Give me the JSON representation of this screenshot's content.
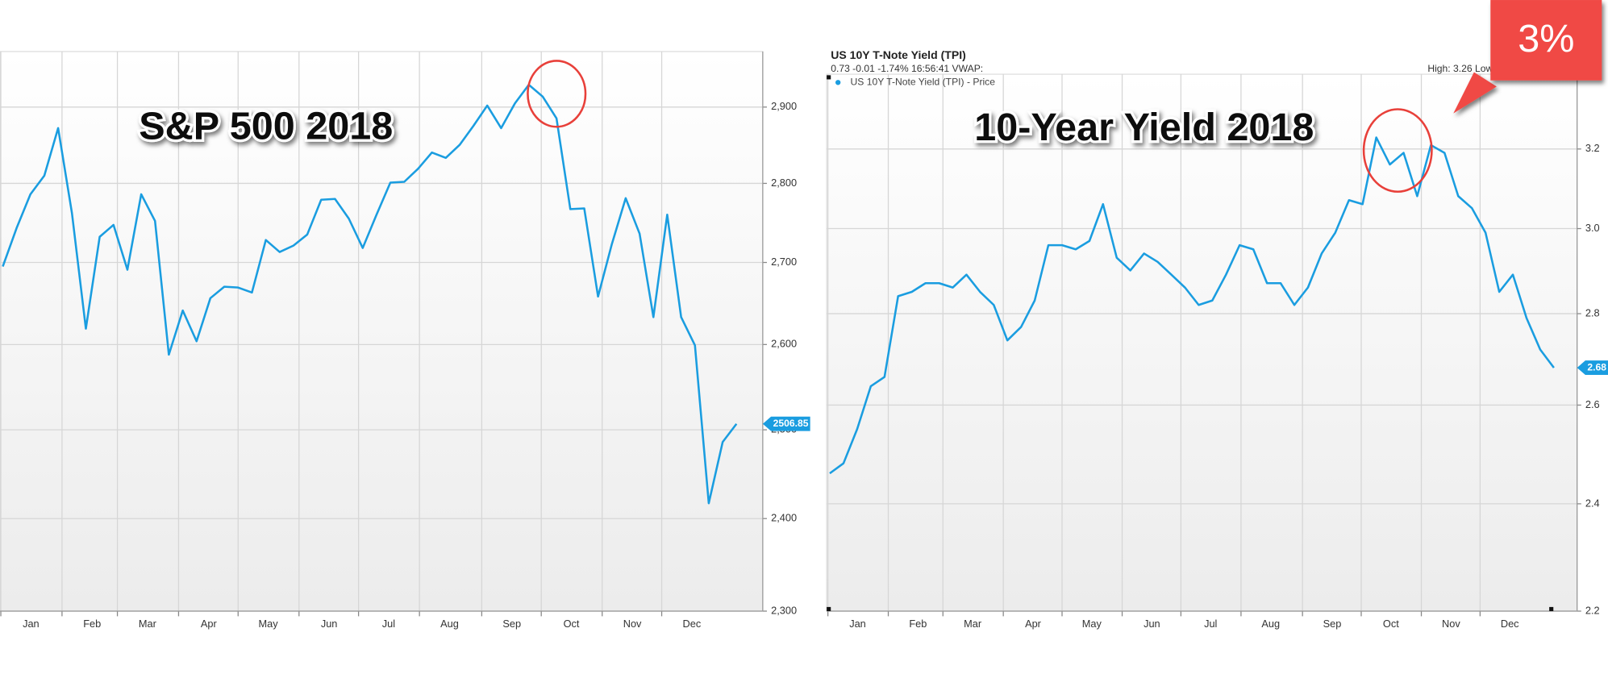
{
  "chart_data": [
    {
      "type": "line",
      "title": "S&P 500 2018",
      "log_scale": true,
      "grid": true,
      "color": "#1a9de0",
      "x": [
        0,
        1,
        2,
        3,
        4,
        5,
        6,
        7,
        8,
        9,
        10,
        11,
        12,
        13,
        14,
        15,
        16,
        17,
        18,
        19,
        20,
        21,
        22,
        23,
        24,
        25,
        26,
        27,
        28,
        29,
        30,
        31,
        32,
        33,
        34,
        35,
        36,
        37,
        38,
        39,
        40,
        41,
        42,
        43,
        44,
        45,
        46,
        47,
        48,
        49,
        50,
        51,
        52,
        53
      ],
      "series": [
        {
          "color": "#1a9de0",
          "values": [
            2695,
            2743,
            2786,
            2810,
            2872,
            2762,
            2619,
            2732,
            2747,
            2691,
            2786,
            2752,
            2588,
            2641,
            2604,
            2656,
            2670,
            2669,
            2663,
            2728,
            2713,
            2721,
            2735,
            2779,
            2780,
            2755,
            2718,
            2760,
            2801,
            2802,
            2819,
            2840,
            2833,
            2850,
            2875,
            2902,
            2872,
            2905,
            2930,
            2914,
            2885,
            2767,
            2768,
            2658,
            2723,
            2781,
            2736,
            2633,
            2760,
            2633,
            2599,
            2417,
            2486,
            2506.85
          ]
        }
      ],
      "xlim": [
        -0.2,
        54.9
      ],
      "xticks": [
        {
          "value": -0.14,
          "label": "Jan"
        },
        {
          "value": 4.28,
          "label": "Feb"
        },
        {
          "value": 8.28,
          "label": "Mar"
        },
        {
          "value": 12.7,
          "label": "Apr"
        },
        {
          "value": 17,
          "label": "May"
        },
        {
          "value": 21.4,
          "label": "Jun"
        },
        {
          "value": 25.7,
          "label": "Jul"
        },
        {
          "value": 30.1,
          "label": "Aug"
        },
        {
          "value": 34.6,
          "label": "Sep"
        },
        {
          "value": 38.9,
          "label": "Oct"
        },
        {
          "value": 43.3,
          "label": "Nov"
        },
        {
          "value": 47.6,
          "label": "Dec"
        }
      ],
      "ylim": [
        2300,
        2975
      ],
      "yticks": [
        {
          "value": 2300,
          "label": "2,300"
        },
        {
          "value": 2400,
          "label": "2,400"
        },
        {
          "value": 2500,
          "label": "2,500"
        },
        {
          "value": 2600,
          "label": "2,600"
        },
        {
          "value": 2700,
          "label": "2,700"
        },
        {
          "value": 2800,
          "label": "2,800"
        },
        {
          "value": 2900,
          "label": "2,900"
        }
      ]
    },
    {
      "type": "line",
      "title": "10-Year Yield 2018",
      "header": "US 10Y T-Note Yield (TPI)",
      "info": "0.73 -0.01 -1.74% 16:56:41 VWAP:",
      "high_low": "High: 3.26 Low",
      "callout": "3%",
      "log_scale": true,
      "grid": true,
      "color": "#1a9de0",
      "x": [
        0,
        1,
        2,
        3,
        4,
        5,
        6,
        7,
        8,
        9,
        10,
        11,
        12,
        13,
        14,
        15,
        16,
        17,
        18,
        19,
        20,
        21,
        22,
        23,
        24,
        25,
        26,
        27,
        28,
        29,
        30,
        31,
        32,
        33,
        34,
        35,
        36,
        37,
        38,
        39,
        40,
        41,
        42,
        43,
        44,
        45,
        46,
        47,
        48,
        49,
        50,
        51,
        52,
        53
      ],
      "series": [
        {
          "name": "US 10Y T-Note Yield (TPI) - Price",
          "color": "#1a9de0",
          "values": [
            2.46,
            2.48,
            2.55,
            2.64,
            2.66,
            2.84,
            2.85,
            2.87,
            2.87,
            2.86,
            2.89,
            2.85,
            2.82,
            2.74,
            2.77,
            2.83,
            2.96,
            2.96,
            2.95,
            2.97,
            3.06,
            2.93,
            2.9,
            2.94,
            2.92,
            2.89,
            2.86,
            2.82,
            2.83,
            2.89,
            2.96,
            2.95,
            2.87,
            2.87,
            2.82,
            2.86,
            2.94,
            2.99,
            3.07,
            3.06,
            3.23,
            3.16,
            3.19,
            3.08,
            3.21,
            3.19,
            3.08,
            3.05,
            2.99,
            2.85,
            2.89,
            2.79,
            2.72,
            2.68
          ]
        }
      ],
      "xlim": [
        -0.23,
        54.7
      ],
      "xticks": [
        {
          "value": -0.14,
          "label": "Jan"
        },
        {
          "value": 4.28,
          "label": "Feb"
        },
        {
          "value": 8.28,
          "label": "Mar"
        },
        {
          "value": 12.7,
          "label": "Apr"
        },
        {
          "value": 17,
          "label": "May"
        },
        {
          "value": 21.4,
          "label": "Jun"
        },
        {
          "value": 25.7,
          "label": "Jul"
        },
        {
          "value": 30.1,
          "label": "Aug"
        },
        {
          "value": 34.6,
          "label": "Sep"
        },
        {
          "value": 38.9,
          "label": "Oct"
        },
        {
          "value": 43.3,
          "label": "Nov"
        },
        {
          "value": 47.6,
          "label": "Dec"
        }
      ],
      "ylim": [
        2.2,
        3.4
      ],
      "yticks": [
        2.2,
        2.4,
        2.6,
        2.8,
        {
          "value": 3,
          "label": "3.0"
        },
        3.2
      ]
    }
  ]
}
